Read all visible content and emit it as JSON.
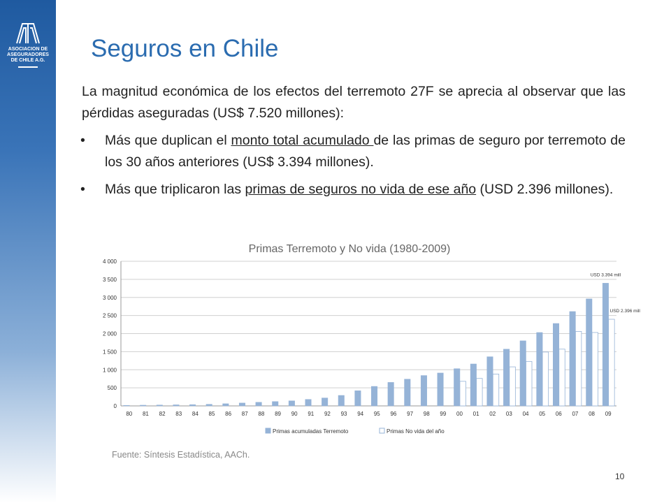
{
  "logo": {
    "line1": "ASOCIACION DE",
    "line2": "ASEGURADORES",
    "line3": "DE CHILE A.G."
  },
  "slide": {
    "title": "Seguros en Chile",
    "intro": "La magnitud económica de los efectos del terremoto 27F se aprecia  al observar que las pérdidas aseguradas (US$ 7.520 millones):",
    "bullet_symbol": "•",
    "bullet1_pre": "Más que duplican el ",
    "bullet1_u": "monto total acumulado ",
    "bullet1_post": "de las primas de seguro por terremoto de los 30 años anteriores (US$ 3.394 millones).",
    "bullet2_pre": "Más que triplicaron las ",
    "bullet2_u": "primas de seguros no vida de ese año",
    "bullet2_post": " (USD 2.396 millones).",
    "source": "Fuente: Síntesis Estadística, AACh.",
    "page_number": "10"
  },
  "chart_data": {
    "type": "bar",
    "title": "Primas Terremoto  y No vida (1980-2009)",
    "categories": [
      "80",
      "81",
      "82",
      "83",
      "84",
      "85",
      "86",
      "87",
      "88",
      "89",
      "90",
      "91",
      "92",
      "93",
      "94",
      "95",
      "96",
      "97",
      "98",
      "99",
      "00",
      "01",
      "02",
      "03",
      "04",
      "05",
      "06",
      "07",
      "08",
      "09"
    ],
    "series": [
      {
        "name": "Primas acumuladas Terremoto",
        "color": "#95b3d7",
        "values": [
          15,
          20,
          25,
          30,
          35,
          45,
          60,
          80,
          100,
          120,
          140,
          180,
          220,
          290,
          420,
          540,
          650,
          740,
          840,
          910,
          1030,
          1160,
          1360,
          1570,
          1800,
          2030,
          2280,
          2610,
          2960,
          3394
        ]
      },
      {
        "name": "Primas No vida del año",
        "color": "#ffffff",
        "values": [
          null,
          null,
          null,
          null,
          null,
          null,
          null,
          null,
          null,
          null,
          null,
          null,
          null,
          null,
          null,
          null,
          null,
          null,
          null,
          null,
          680,
          760,
          880,
          1080,
          1230,
          1490,
          1570,
          2060,
          2030,
          2396
        ]
      }
    ],
    "yticks": [
      "0",
      "500",
      "1 000",
      "1 500",
      "2 000",
      "2 500",
      "3 000",
      "3 500",
      "4 000"
    ],
    "ylim": [
      0,
      4000
    ],
    "grid": true,
    "legend": "bottom",
    "annotations": [
      "USD 3.394 mill",
      "USD 2.396 mill"
    ]
  }
}
